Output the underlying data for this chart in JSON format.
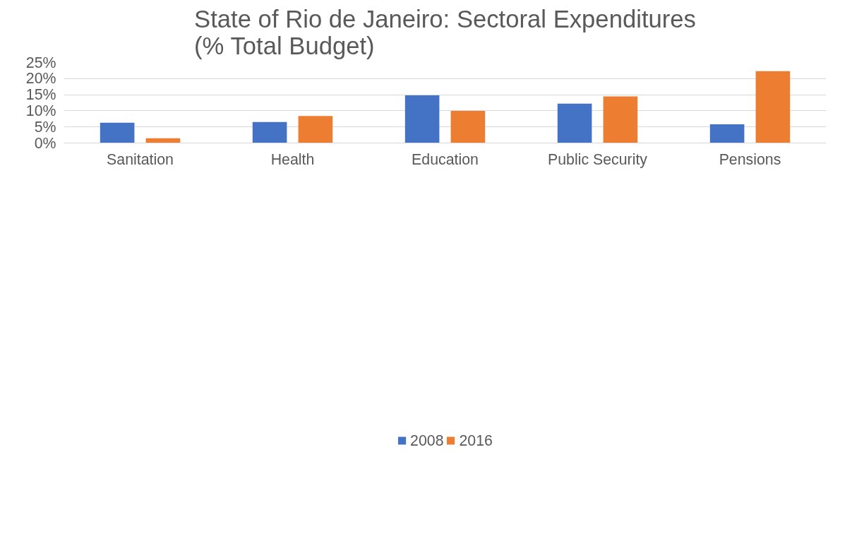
{
  "chart_data": {
    "type": "bar",
    "title": "State of Rio de Janeiro: Sectoral Expenditures\n(% Total Budget)",
    "categories": [
      "Sanitation",
      "Health",
      "Education",
      "Public Security",
      "Pensions"
    ],
    "series": [
      {
        "name": "2008",
        "color": "#4472c4",
        "values": [
          6.3,
          6.5,
          14.8,
          12.2,
          5.8
        ]
      },
      {
        "name": "2016",
        "color": "#ed7d31",
        "values": [
          1.5,
          8.4,
          10.0,
          14.5,
          22.3
        ]
      }
    ],
    "ylim": [
      0,
      25
    ],
    "yticks": [
      {
        "value": 0,
        "label": "0%"
      },
      {
        "value": 5,
        "label": "5%"
      },
      {
        "value": 10,
        "label": "10%"
      },
      {
        "value": 15,
        "label": "15%"
      },
      {
        "value": 20,
        "label": "20%"
      },
      {
        "value": 25,
        "label": "25%"
      }
    ],
    "grid": "y",
    "legend": "bottom"
  }
}
